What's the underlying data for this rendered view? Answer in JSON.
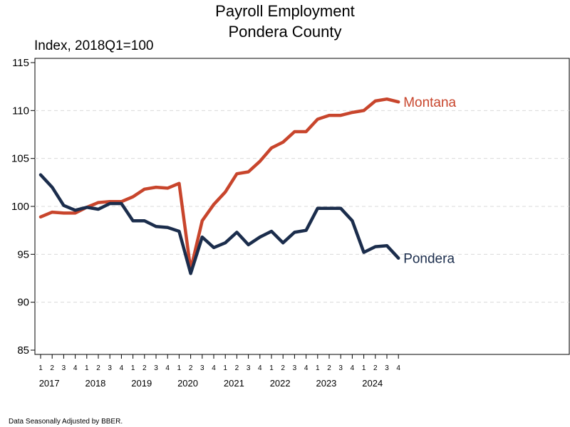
{
  "chart_data": {
    "type": "line",
    "title": [
      "Payroll Employment",
      "Pondera County"
    ],
    "ylabel": "Index, 2018Q1=100",
    "ylim": [
      85,
      115
    ],
    "yticks": [
      85,
      90,
      95,
      100,
      105,
      110,
      115
    ],
    "grid": true,
    "quarters": [
      "1",
      "2",
      "3",
      "4",
      "1",
      "2",
      "3",
      "4",
      "1",
      "2",
      "3",
      "4",
      "1",
      "2",
      "3",
      "4",
      "1",
      "2",
      "3",
      "4",
      "1",
      "2",
      "3",
      "4",
      "1",
      "2",
      "3",
      "4",
      "1",
      "2",
      "3",
      "4"
    ],
    "years": [
      "2017",
      "2018",
      "2019",
      "2020",
      "2021",
      "2022",
      "2023",
      "2024"
    ],
    "series": [
      {
        "name": "Montana",
        "color": "#c8452c",
        "values": [
          98.9,
          99.4,
          99.3,
          99.3,
          99.9,
          100.4,
          100.5,
          100.5,
          101.0,
          101.8,
          102.0,
          101.9,
          102.4,
          93.4,
          98.5,
          100.2,
          101.5,
          103.4,
          103.6,
          104.7,
          106.1,
          106.7,
          107.8,
          107.8,
          109.1,
          109.5,
          109.5,
          109.8,
          110.0,
          111.0,
          111.2,
          110.9
        ]
      },
      {
        "name": "Pondera",
        "color": "#1b2d4c",
        "values": [
          103.3,
          102.0,
          100.1,
          99.6,
          99.9,
          99.7,
          100.3,
          100.3,
          98.5,
          98.5,
          97.9,
          97.8,
          97.4,
          93.0,
          96.8,
          95.7,
          96.2,
          97.3,
          96.0,
          96.8,
          97.4,
          96.2,
          97.3,
          97.5,
          99.8,
          99.8,
          99.8,
          98.5,
          95.2,
          95.8,
          95.9,
          94.6
        ]
      }
    ],
    "note": "Data Seasonally Adjusted by BBER."
  }
}
